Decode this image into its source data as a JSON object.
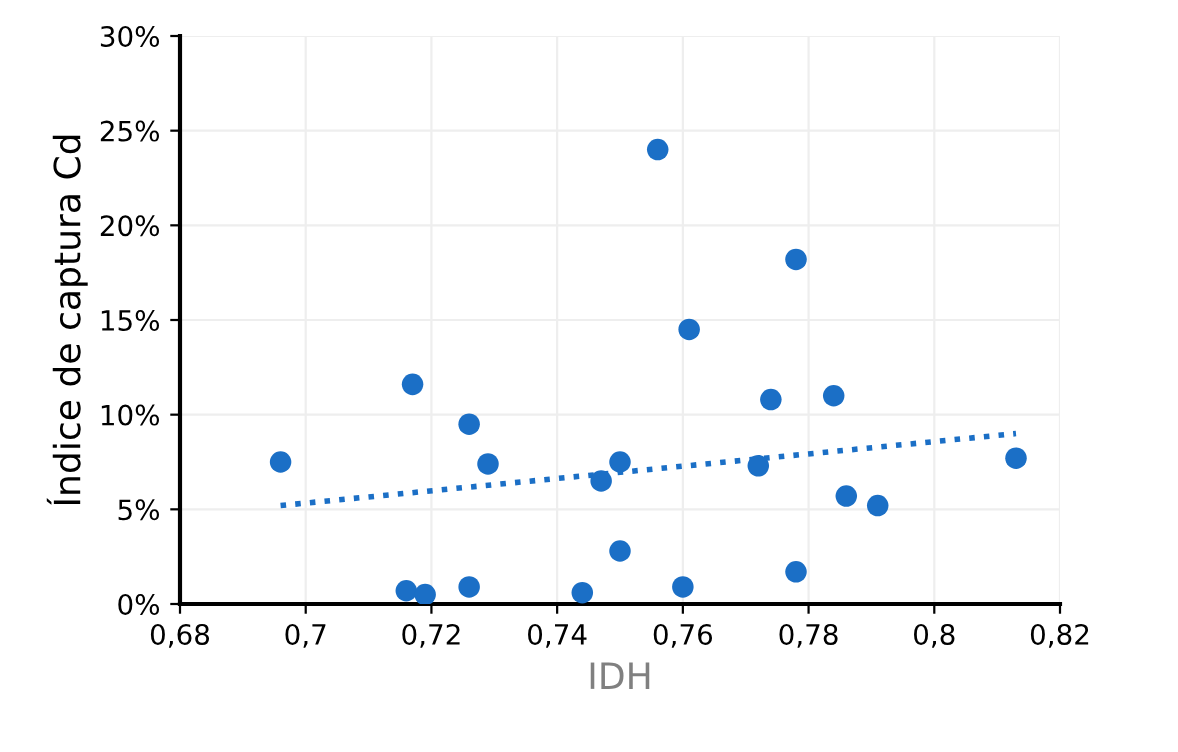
{
  "chart_data": {
    "type": "scatter",
    "xlabel": "IDH",
    "ylabel": "Índice de captura Cd",
    "xlim": [
      0.68,
      0.82
    ],
    "ylim": [
      0,
      30
    ],
    "xticks": [
      {
        "value": 0.68,
        "label": "0,68"
      },
      {
        "value": 0.7,
        "label": "0,7"
      },
      {
        "value": 0.72,
        "label": "0,72"
      },
      {
        "value": 0.74,
        "label": "0,74"
      },
      {
        "value": 0.76,
        "label": "0,76"
      },
      {
        "value": 0.78,
        "label": "0,78"
      },
      {
        "value": 0.8,
        "label": "0,8"
      },
      {
        "value": 0.82,
        "label": "0,82"
      }
    ],
    "yticks": [
      {
        "value": 0,
        "label": "0%"
      },
      {
        "value": 5,
        "label": "5%"
      },
      {
        "value": 10,
        "label": "10%"
      },
      {
        "value": 15,
        "label": "15%"
      },
      {
        "value": 20,
        "label": "20%"
      },
      {
        "value": 25,
        "label": "25%"
      },
      {
        "value": 30,
        "label": "30%"
      }
    ],
    "grid": true,
    "series": [
      {
        "marker": "circle",
        "color": "#1b6fc6",
        "x": [
          0.696,
          0.717,
          0.726,
          0.729,
          0.716,
          0.719,
          0.726,
          0.744,
          0.747,
          0.75,
          0.75,
          0.756,
          0.761,
          0.76,
          0.772,
          0.774,
          0.778,
          0.778,
          0.784,
          0.786,
          0.791,
          0.813
        ],
        "values": [
          7.5,
          11.6,
          9.5,
          7.4,
          0.7,
          0.5,
          0.9,
          0.6,
          6.5,
          7.5,
          2.8,
          24.0,
          14.5,
          0.9,
          7.3,
          10.8,
          18.2,
          1.7,
          11.0,
          5.7,
          5.2,
          7.7
        ]
      },
      {
        "type": "line",
        "color": "#1b6fc6",
        "line_style": "dotted",
        "marker": "none",
        "x": [
          0.696,
          0.813
        ],
        "values": [
          5.2,
          9.0
        ]
      }
    ]
  }
}
